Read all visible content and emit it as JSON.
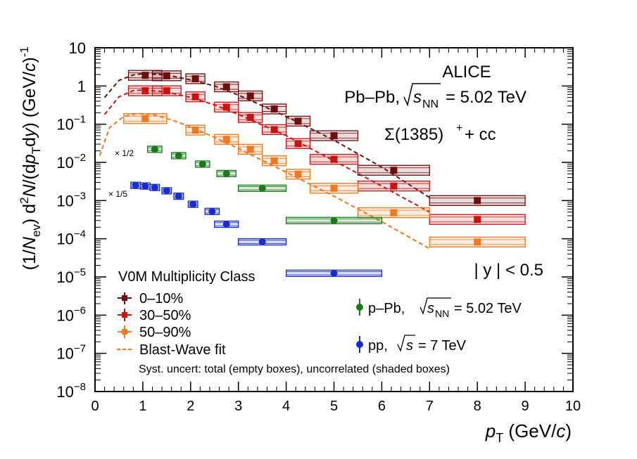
{
  "chart_data": {
    "type": "scatter",
    "y_scale": "log",
    "xlim": [
      0,
      10
    ],
    "ylim": [
      1e-08,
      10
    ],
    "x_ticks": [
      0,
      1,
      2,
      3,
      4,
      5,
      6,
      7,
      8,
      9,
      10
    ],
    "y_ticks": [
      {
        "value": 1e-08,
        "base": "10",
        "exp": "−8"
      },
      {
        "value": 1e-07,
        "base": "10",
        "exp": "−7"
      },
      {
        "value": 1e-06,
        "base": "10",
        "exp": "−6"
      },
      {
        "value": 1e-05,
        "base": "10",
        "exp": "−5"
      },
      {
        "value": 0.0001,
        "base": "10",
        "exp": "−4"
      },
      {
        "value": 0.001,
        "base": "10",
        "exp": "−3"
      },
      {
        "value": 0.01,
        "base": "10",
        "exp": "−2"
      },
      {
        "value": 0.1,
        "base": "10",
        "exp": "−1"
      },
      {
        "value": 1,
        "base": "1",
        "exp": ""
      },
      {
        "value": 10,
        "base": "10",
        "exp": ""
      }
    ],
    "xlabel": "p_T (GeV/c)",
    "ylabel": "(1/N_ev) d²N/(dp_T dy) (GeV/c)⁻¹",
    "series": [
      {
        "name": "0–10%",
        "color": "#6b0f0f",
        "marker": "square",
        "x": [
          1.05,
          1.5,
          2.1,
          2.75,
          3.25,
          3.75,
          4.25,
          5.0,
          6.25,
          8.0
        ],
        "xerr": [
          0.35,
          0.3,
          0.2,
          0.25,
          0.25,
          0.25,
          0.25,
          0.5,
          0.75,
          1.0
        ],
        "y": [
          1.9,
          1.85,
          1.55,
          0.95,
          0.55,
          0.25,
          0.12,
          0.05,
          0.0062,
          0.001
        ]
      },
      {
        "name": "30–50%",
        "color": "#cc1111",
        "marker": "square",
        "x": [
          1.05,
          1.5,
          2.1,
          2.75,
          3.25,
          3.75,
          4.25,
          5.0,
          6.25,
          8.0
        ],
        "xerr": [
          0.35,
          0.3,
          0.2,
          0.25,
          0.25,
          0.25,
          0.25,
          0.5,
          0.75,
          1.0
        ],
        "y": [
          0.75,
          0.75,
          0.52,
          0.28,
          0.15,
          0.072,
          0.031,
          0.012,
          0.0024,
          0.00032
        ]
      },
      {
        "name": "50–90%",
        "color": "#f07820",
        "marker": "square",
        "x": [
          1.05,
          2.1,
          2.75,
          3.25,
          3.75,
          4.25,
          5.0,
          6.25,
          8.0
        ],
        "xerr": [
          0.45,
          0.2,
          0.25,
          0.25,
          0.25,
          0.25,
          0.5,
          0.75,
          1.0
        ],
        "y": [
          0.14,
          0.07,
          0.04,
          0.022,
          0.011,
          0.0049,
          0.0021,
          0.00048,
          8.2e-05
        ]
      },
      {
        "name": "p–Pb",
        "color": "#1a7a1a",
        "marker": "circle",
        "x": [
          1.25,
          1.75,
          2.25,
          2.75,
          3.5,
          5.0
        ],
        "xerr": [
          0.15,
          0.15,
          0.15,
          0.2,
          0.5,
          1.0
        ],
        "y": [
          0.022,
          0.015,
          0.009,
          0.0051,
          0.0021,
          0.0003
        ]
      },
      {
        "name": "pp",
        "color": "#1a2ccc",
        "marker": "circle",
        "x": [
          0.85,
          1.05,
          1.25,
          1.5,
          1.75,
          2.05,
          2.45,
          2.75,
          3.5,
          5.0
        ],
        "xerr": [
          0.1,
          0.1,
          0.1,
          0.1,
          0.1,
          0.1,
          0.15,
          0.25,
          0.5,
          1.0
        ],
        "y": [
          0.0025,
          0.0024,
          0.0022,
          0.0018,
          0.0013,
          0.0008,
          0.00052,
          0.00024,
          8.3e-05,
          1.25e-05
        ]
      }
    ],
    "blast_wave_fits": [
      {
        "color": "#6b0f0f",
        "x": [
          0.2,
          0.5,
          0.8,
          1.0,
          1.5,
          2.0,
          2.5,
          3.0,
          4.0,
          5.0,
          6.0,
          7.0
        ],
        "y": [
          0.5,
          1.4,
          1.95,
          2.1,
          1.95,
          1.45,
          1.0,
          0.58,
          0.16,
          0.038,
          0.0075,
          0.0012
        ]
      },
      {
        "color": "#cc1111",
        "x": [
          0.2,
          0.5,
          0.8,
          1.0,
          1.5,
          2.0,
          2.5,
          3.0,
          4.0,
          5.0,
          6.0,
          7.0
        ],
        "y": [
          0.18,
          0.52,
          0.76,
          0.78,
          0.7,
          0.5,
          0.32,
          0.18,
          0.05,
          0.011,
          0.0024,
          0.0005
        ]
      },
      {
        "color": "#f07820",
        "x": [
          0.1,
          0.3,
          0.6,
          0.9,
          1.2,
          1.6,
          2.0,
          2.5,
          3.0,
          4.0,
          5.0,
          6.0,
          7.0
        ],
        "y": [
          0.015,
          0.08,
          0.16,
          0.19,
          0.18,
          0.13,
          0.085,
          0.045,
          0.023,
          0.0055,
          0.0013,
          0.00028,
          5.5e-05
        ]
      }
    ],
    "annotations": {
      "experiment": "ALICE",
      "system": "Pb–Pb,",
      "energy": "= 5.02 TeV",
      "particle": "Σ(1385)",
      "particle_tail": "+ cc",
      "rapidity": "| y | < 0.5",
      "scale_ppb": "× 1/2",
      "scale_pp": "× 1/5",
      "legend_title": "V0M Multiplicity Class",
      "legend_entries": [
        "0–10%",
        "30–50%",
        "50–90%",
        "Blast-Wave fit"
      ],
      "ppb_label": "p–Pb,",
      "ppb_energy": "= 5.02 TeV",
      "pp_label": "pp,",
      "pp_energy": "= 7 TeV",
      "syst_note": "Syst. uncert: total (empty boxes), uncorrelated (shaded boxes)"
    }
  }
}
